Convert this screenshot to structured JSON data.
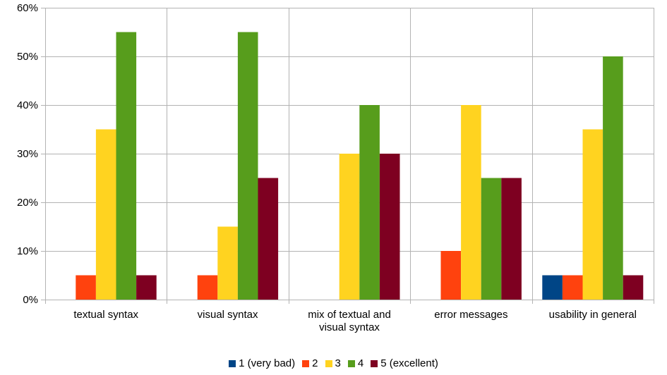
{
  "chart_data": {
    "type": "bar",
    "title": "",
    "xlabel": "",
    "ylabel": "",
    "ylim": [
      0,
      60
    ],
    "y_ticks": [
      "0%",
      "10%",
      "20%",
      "30%",
      "40%",
      "50%",
      "60%"
    ],
    "y_tick_values": [
      0,
      10,
      20,
      30,
      40,
      50,
      60
    ],
    "grid": true,
    "legend_position": "bottom",
    "categories": [
      [
        "textual syntax"
      ],
      [
        "visual syntax"
      ],
      [
        "mix of textual and",
        "visual syntax"
      ],
      [
        "error messages"
      ],
      [
        "usability in general"
      ]
    ],
    "series": [
      {
        "name": "1 (very bad)",
        "color": "#004586",
        "values": [
          0,
          0,
          0,
          0,
          5
        ]
      },
      {
        "name": "2",
        "color": "#ff420e",
        "values": [
          5,
          5,
          0,
          10,
          5
        ]
      },
      {
        "name": "3",
        "color": "#ffd320",
        "values": [
          35,
          15,
          30,
          40,
          35
        ]
      },
      {
        "name": "4",
        "color": "#579d1c",
        "values": [
          55,
          55,
          40,
          25,
          50
        ]
      },
      {
        "name": "5 (excellent)",
        "color": "#7e0021",
        "values": [
          5,
          25,
          30,
          25,
          5
        ]
      }
    ]
  }
}
